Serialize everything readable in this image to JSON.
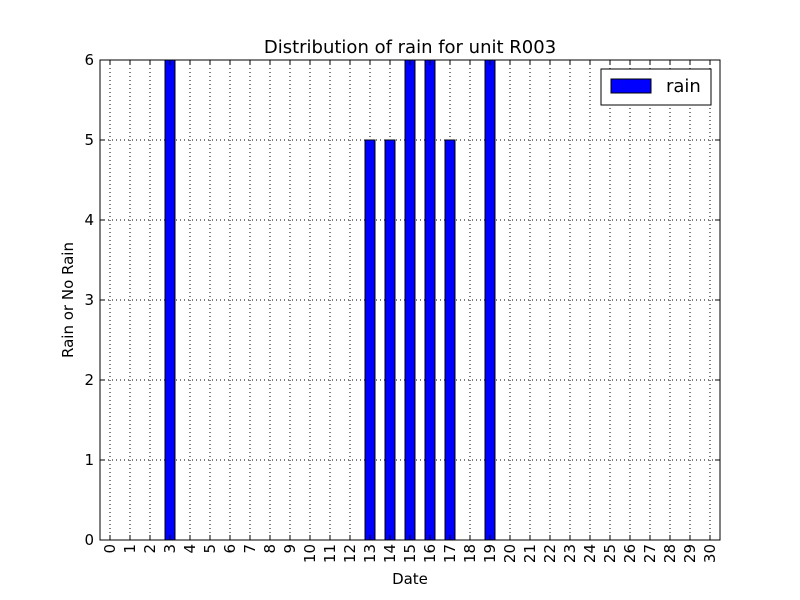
{
  "chart_data": {
    "type": "bar",
    "title": "Distribution of rain for unit R003",
    "xlabel": "Date",
    "ylabel": "Rain or No Rain",
    "categories": [
      "0",
      "1",
      "2",
      "3",
      "4",
      "5",
      "6",
      "7",
      "8",
      "9",
      "10",
      "11",
      "12",
      "13",
      "14",
      "15",
      "16",
      "17",
      "18",
      "19",
      "20",
      "21",
      "22",
      "23",
      "24",
      "25",
      "26",
      "27",
      "28",
      "29",
      "30"
    ],
    "series": [
      {
        "name": "rain",
        "color": "#0000ff",
        "values": [
          0,
          0,
          0,
          6,
          0,
          0,
          0,
          0,
          0,
          0,
          0,
          0,
          0,
          5,
          5,
          6,
          6,
          5,
          0,
          6,
          0,
          0,
          0,
          0,
          0,
          0,
          0,
          0,
          0,
          0,
          0
        ]
      }
    ],
    "ylim": [
      0,
      6
    ],
    "yticks": [
      "0",
      "1",
      "2",
      "3",
      "4",
      "5",
      "6"
    ],
    "grid": true,
    "legend_position": "top-right"
  }
}
